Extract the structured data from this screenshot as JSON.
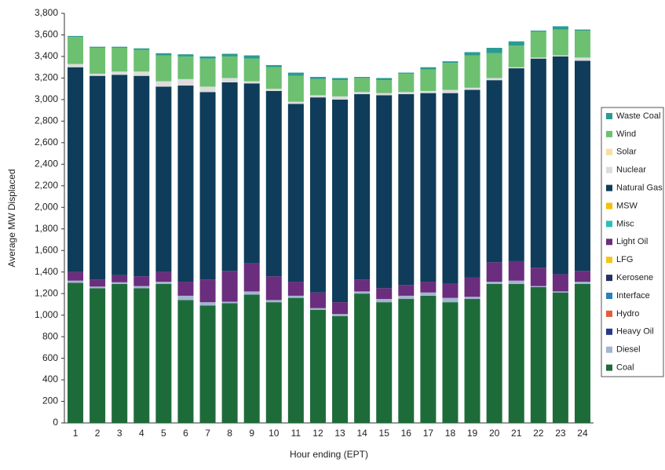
{
  "chart_data": {
    "type": "stacked_bar",
    "y_label": "Average MW Displaced",
    "x_label": "Hour ending (EPT)",
    "categories": [
      "1",
      "2",
      "3",
      "4",
      "5",
      "6",
      "7",
      "8",
      "9",
      "10",
      "11",
      "12",
      "13",
      "14",
      "15",
      "16",
      "17",
      "18",
      "19",
      "20",
      "21",
      "22",
      "23",
      "24"
    ],
    "ylim": [
      0,
      3800
    ],
    "yticks": [
      0,
      200,
      400,
      600,
      800,
      {
        "value": 1000,
        "label": "1,000"
      },
      {
        "value": 1200,
        "label": "1,200"
      },
      {
        "value": 1400,
        "label": "1,400"
      },
      {
        "value": 1600,
        "label": "1,600"
      },
      {
        "value": 1800,
        "label": "1,800"
      },
      {
        "value": 2000,
        "label": "2,000"
      },
      {
        "value": 2200,
        "label": "2,200"
      },
      {
        "value": 2400,
        "label": "2,400"
      },
      {
        "value": 2600,
        "label": "2,600"
      },
      {
        "value": 2800,
        "label": "2,800"
      },
      {
        "value": 3000,
        "label": "3,000"
      },
      {
        "value": 3200,
        "label": "3,200"
      },
      {
        "value": 3400,
        "label": "3,400"
      },
      {
        "value": 3600,
        "label": "3,600"
      },
      {
        "value": 3800,
        "label": "3,800"
      }
    ],
    "series": [
      {
        "name": "Coal",
        "color": "#1e6b3a",
        "values": [
          1300,
          1250,
          1290,
          1250,
          1290,
          1140,
          1090,
          1110,
          1190,
          1120,
          1160,
          1050,
          990,
          1200,
          1120,
          1150,
          1180,
          1120,
          1150,
          1290,
          1290,
          1260,
          1210,
          1290
        ]
      },
      {
        "name": "Diesel",
        "color": "#a3b5cf",
        "values": [
          20,
          15,
          15,
          20,
          20,
          40,
          30,
          15,
          30,
          20,
          20,
          15,
          20,
          20,
          30,
          30,
          30,
          40,
          20,
          20,
          30,
          10,
          10,
          20
        ]
      },
      {
        "name": "Heavy Oil",
        "color": "#253a8a",
        "values": [
          0,
          0,
          0,
          0,
          0,
          0,
          0,
          0,
          0,
          0,
          0,
          0,
          0,
          0,
          0,
          0,
          0,
          0,
          0,
          0,
          0,
          0,
          0,
          0
        ]
      },
      {
        "name": "Hydro",
        "color": "#e8593a",
        "values": [
          0,
          0,
          0,
          0,
          0,
          0,
          0,
          0,
          0,
          0,
          0,
          0,
          0,
          0,
          0,
          0,
          0,
          0,
          0,
          0,
          0,
          0,
          0,
          0
        ]
      },
      {
        "name": "Interface",
        "color": "#2a7fbf",
        "values": [
          0,
          0,
          0,
          0,
          0,
          0,
          0,
          0,
          0,
          0,
          0,
          0,
          0,
          0,
          0,
          0,
          0,
          0,
          0,
          0,
          0,
          0,
          0,
          0
        ]
      },
      {
        "name": "Kerosene",
        "color": "#263062",
        "values": [
          0,
          0,
          0,
          0,
          0,
          0,
          0,
          0,
          0,
          0,
          0,
          0,
          0,
          0,
          0,
          0,
          0,
          0,
          0,
          0,
          0,
          0,
          0,
          0
        ]
      },
      {
        "name": "LFG",
        "color": "#f5c518",
        "values": [
          0,
          0,
          0,
          0,
          0,
          0,
          0,
          0,
          0,
          0,
          0,
          0,
          0,
          0,
          0,
          0,
          0,
          0,
          0,
          0,
          0,
          0,
          0,
          0
        ]
      },
      {
        "name": "Light Oil",
        "color": "#6b2d7d",
        "values": [
          80,
          65,
          65,
          90,
          90,
          130,
          210,
          285,
          260,
          220,
          130,
          145,
          110,
          110,
          100,
          100,
          100,
          130,
          180,
          180,
          180,
          170,
          160,
          100
        ]
      },
      {
        "name": "Misc",
        "color": "#2bbfb5",
        "values": [
          0,
          0,
          0,
          0,
          0,
          0,
          0,
          0,
          0,
          0,
          0,
          0,
          0,
          0,
          0,
          0,
          0,
          0,
          0,
          0,
          0,
          0,
          0,
          0
        ]
      },
      {
        "name": "MSW",
        "color": "#f5c000",
        "values": [
          0,
          0,
          0,
          0,
          0,
          0,
          0,
          0,
          0,
          0,
          0,
          0,
          0,
          0,
          0,
          0,
          0,
          0,
          0,
          0,
          0,
          0,
          0,
          0
        ]
      },
      {
        "name": "Natural Gas",
        "color": "#0f3c5a",
        "values": [
          1900,
          1890,
          1860,
          1860,
          1720,
          1820,
          1740,
          1750,
          1670,
          1720,
          1650,
          1810,
          1880,
          1720,
          1790,
          1770,
          1750,
          1770,
          1740,
          1690,
          1790,
          1940,
          2020,
          1950
        ]
      },
      {
        "name": "Nuclear",
        "color": "#dcdcdc",
        "values": [
          30,
          20,
          30,
          40,
          50,
          60,
          50,
          40,
          20,
          20,
          20,
          20,
          30,
          20,
          20,
          20,
          20,
          30,
          20,
          20,
          10,
          10,
          10,
          30
        ]
      },
      {
        "name": "Solar",
        "color": "#f7dfa0",
        "values": [
          0,
          0,
          0,
          0,
          0,
          0,
          0,
          0,
          0,
          0,
          0,
          0,
          0,
          0,
          0,
          0,
          0,
          0,
          0,
          0,
          0,
          0,
          0,
          0
        ]
      },
      {
        "name": "Wind",
        "color": "#6cc070",
        "values": [
          250,
          240,
          220,
          200,
          240,
          210,
          260,
          200,
          210,
          200,
          240,
          150,
          150,
          130,
          120,
          170,
          200,
          250,
          300,
          230,
          200,
          240,
          240,
          250
        ]
      },
      {
        "name": "Waste Coal",
        "color": "#2a9b92",
        "values": [
          10,
          10,
          10,
          15,
          20,
          20,
          20,
          25,
          30,
          20,
          30,
          20,
          20,
          10,
          20,
          10,
          20,
          15,
          30,
          50,
          40,
          10,
          30,
          10
        ]
      }
    ]
  }
}
